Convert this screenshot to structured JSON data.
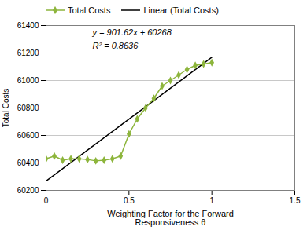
{
  "chart_data": {
    "type": "line",
    "xlabel": "Weighting Factor for the Forward\nResponsiveness θ",
    "ylabel": "Total Costs",
    "series": [
      {
        "name": "Total Costs",
        "type": "line",
        "marker": "diamond",
        "color": "#8db53c",
        "x": [
          0.0,
          0.05,
          0.1,
          0.15,
          0.2,
          0.25,
          0.3,
          0.35,
          0.4,
          0.45,
          0.5,
          0.55,
          0.6,
          0.65,
          0.7,
          0.75,
          0.8,
          0.85,
          0.9,
          0.95,
          1.0
        ],
        "values": [
          60430,
          60450,
          60420,
          60430,
          60430,
          60425,
          60415,
          60420,
          60430,
          60450,
          60610,
          60720,
          60800,
          60870,
          60960,
          61000,
          61040,
          61080,
          61110,
          61120,
          61130
        ]
      },
      {
        "name": "Linear (Total Costs)",
        "type": "line",
        "color": "#000000",
        "x": [
          0,
          1
        ],
        "values": [
          60268,
          61169.62
        ]
      }
    ],
    "annotations": [
      {
        "text": "y = 901.62x + 60268",
        "x": 0.28,
        "y": 61330
      },
      {
        "text": "R² = 0.8636",
        "x": 0.28,
        "y": 61230
      }
    ],
    "xlim": [
      0,
      1.5
    ],
    "ylim": [
      60200,
      61400
    ],
    "xticks": [
      0,
      0.5,
      1,
      1.5
    ],
    "yticks": [
      60200,
      60400,
      60600,
      60800,
      61000,
      61200,
      61400
    ],
    "grid": true,
    "legend": "top"
  }
}
